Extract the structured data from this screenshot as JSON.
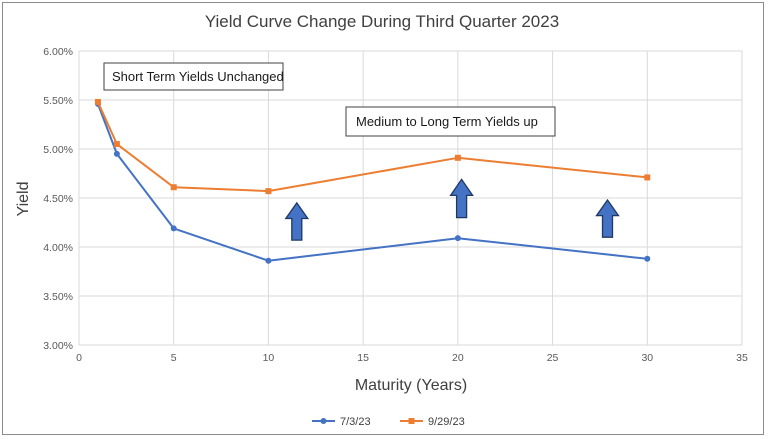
{
  "chart_data": {
    "type": "line",
    "title": "Yield Curve Change During Third Quarter 2023",
    "xlabel": "Maturity (Years)",
    "ylabel": "Yield",
    "xlim": [
      0,
      35
    ],
    "ylim": [
      0.03,
      0.06
    ],
    "x_ticks": [
      0,
      5,
      10,
      15,
      20,
      25,
      30,
      35
    ],
    "y_ticks": [
      0.03,
      0.035,
      0.04,
      0.045,
      0.05,
      0.055,
      0.06
    ],
    "x_tick_labels": [
      "0",
      "5",
      "10",
      "15",
      "20",
      "25",
      "30",
      "35"
    ],
    "y_tick_labels": [
      "3.00%",
      "3.50%",
      "4.00%",
      "4.50%",
      "5.00%",
      "5.50%",
      "6.00%"
    ],
    "grid": true,
    "legend_position": "bottom",
    "series": [
      {
        "name": "7/3/23",
        "color": "#4472c4",
        "marker": "circle",
        "x": [
          1,
          2,
          5,
          10,
          20,
          30
        ],
        "y": [
          0.0546,
          0.0495,
          0.0419,
          0.0386,
          0.0409,
          0.0388
        ]
      },
      {
        "name": "9/29/23",
        "color": "#ed7d31",
        "marker": "square",
        "x": [
          1,
          2,
          5,
          10,
          20,
          30
        ],
        "y": [
          0.0548,
          0.0505,
          0.0461,
          0.0457,
          0.0491,
          0.0471
        ]
      }
    ],
    "annotations": [
      {
        "text": "Short Term Yields Unchanged"
      },
      {
        "text": "Medium to Long Term Yields up"
      }
    ],
    "arrows": [
      {
        "direction": "up",
        "at_x": 11.5,
        "from_y": 0.0407,
        "to_y": 0.0445,
        "color": "#4472c4"
      },
      {
        "direction": "up",
        "at_x": 20.2,
        "from_y": 0.043,
        "to_y": 0.0469,
        "color": "#4472c4"
      },
      {
        "direction": "up",
        "at_x": 27.9,
        "from_y": 0.041,
        "to_y": 0.0448,
        "color": "#4472c4"
      }
    ]
  }
}
